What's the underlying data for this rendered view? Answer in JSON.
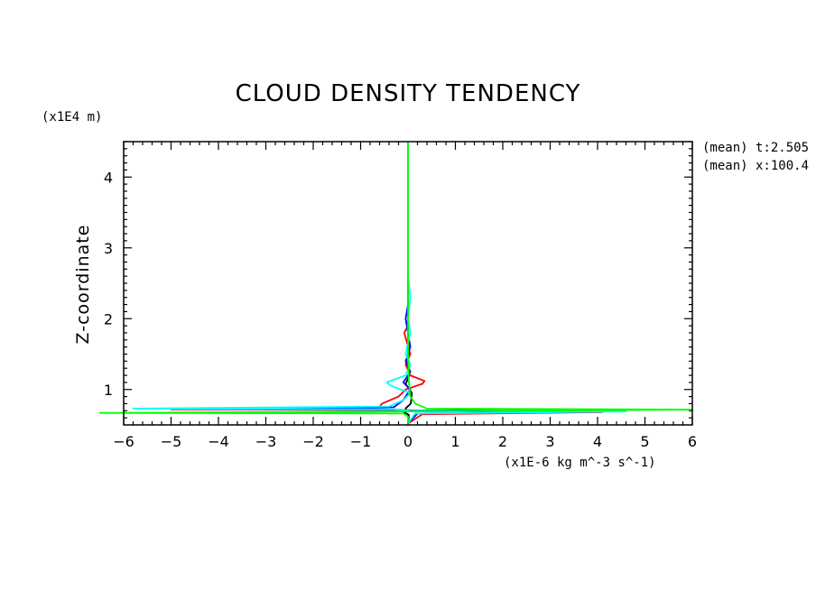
{
  "chart_data": {
    "type": "line",
    "title": "CLOUD DENSITY TENDENCY",
    "ylabel": "Z-coordinate",
    "y_units": "(x1E4 m)",
    "x_units": "(x1E-6 kg m^-3 s^-1)",
    "annotations": [
      "(mean) t:2.505",
      "(mean) x:100.4"
    ],
    "xlim": [
      -6,
      6
    ],
    "ylim": [
      0.5,
      4.5
    ],
    "xticks": [
      -6,
      -5,
      -4,
      -3,
      -2,
      -1,
      0,
      1,
      2,
      3,
      4,
      5,
      6
    ],
    "yticks": [
      1,
      2,
      3,
      4
    ],
    "grid": false,
    "series": [
      {
        "color": "#000000",
        "points": [
          [
            0,
            0.52
          ],
          [
            0.02,
            0.64
          ],
          [
            -0.08,
            0.68
          ],
          [
            -0.04,
            0.74
          ],
          [
            0.06,
            0.8
          ],
          [
            0.08,
            0.95
          ],
          [
            -0.05,
            1.08
          ],
          [
            0.03,
            1.2
          ],
          [
            -0.02,
            1.35
          ],
          [
            0.02,
            1.5
          ],
          [
            0,
            1.7
          ],
          [
            0,
            2.05
          ],
          [
            0,
            2.6
          ],
          [
            0,
            4.5
          ]
        ]
      },
      {
        "color": "#ff0000",
        "points": [
          [
            0,
            0.52
          ],
          [
            0.3,
            0.65
          ],
          [
            4.1,
            0.68
          ],
          [
            0.05,
            0.7
          ],
          [
            -0.2,
            0.71
          ],
          [
            -5.0,
            0.72
          ],
          [
            -0.6,
            0.75
          ],
          [
            -0.55,
            0.8
          ],
          [
            -0.2,
            0.9
          ],
          [
            -0.05,
            1.0
          ],
          [
            0.3,
            1.08
          ],
          [
            0.35,
            1.12
          ],
          [
            0.05,
            1.2
          ],
          [
            -0.05,
            1.35
          ],
          [
            0.05,
            1.5
          ],
          [
            -0.08,
            1.8
          ],
          [
            0,
            1.9
          ],
          [
            0,
            2.2
          ],
          [
            0,
            2.6
          ],
          [
            0,
            4.5
          ]
        ]
      },
      {
        "color": "#0000ff",
        "points": [
          [
            0,
            0.52
          ],
          [
            0.2,
            0.66
          ],
          [
            4.5,
            0.695
          ],
          [
            0.1,
            0.705
          ],
          [
            -0.2,
            0.715
          ],
          [
            -4.3,
            0.725
          ],
          [
            -1.2,
            0.73
          ],
          [
            -0.3,
            0.75
          ],
          [
            -0.1,
            0.85
          ],
          [
            0.05,
            1.0
          ],
          [
            -0.1,
            1.1
          ],
          [
            0.05,
            1.25
          ],
          [
            -0.05,
            1.4
          ],
          [
            0.05,
            1.6
          ],
          [
            -0.05,
            2.0
          ],
          [
            0,
            2.2
          ],
          [
            0,
            2.5
          ],
          [
            0,
            4.5
          ]
        ]
      },
      {
        "color": "#00ffff",
        "points": [
          [
            0,
            0.52
          ],
          [
            0.15,
            0.66
          ],
          [
            4.6,
            0.69
          ],
          [
            0.05,
            0.7
          ],
          [
            -0.3,
            0.72
          ],
          [
            -5.8,
            0.73
          ],
          [
            -0.4,
            0.76
          ],
          [
            -0.1,
            0.85
          ],
          [
            0.05,
            0.95
          ],
          [
            -0.35,
            1.05
          ],
          [
            -0.45,
            1.1
          ],
          [
            -0.05,
            1.2
          ],
          [
            0.05,
            1.35
          ],
          [
            -0.05,
            1.5
          ],
          [
            0.05,
            1.8
          ],
          [
            0,
            2.0
          ],
          [
            0.05,
            2.3
          ],
          [
            0,
            2.6
          ],
          [
            0,
            4.5
          ]
        ]
      },
      {
        "color": "#00ff00",
        "points": [
          [
            0,
            0.52
          ],
          [
            0,
            0.62
          ],
          [
            -0.1,
            0.66
          ],
          [
            -6.5,
            0.67
          ],
          [
            0,
            0.69
          ],
          [
            6.0,
            0.715
          ],
          [
            0.4,
            0.73
          ],
          [
            0.15,
            0.8
          ],
          [
            0.05,
            0.9
          ],
          [
            0.02,
            1.1
          ],
          [
            0,
            1.5
          ],
          [
            0,
            2.0
          ],
          [
            0,
            3.0
          ],
          [
            0,
            4.5
          ]
        ]
      }
    ]
  }
}
